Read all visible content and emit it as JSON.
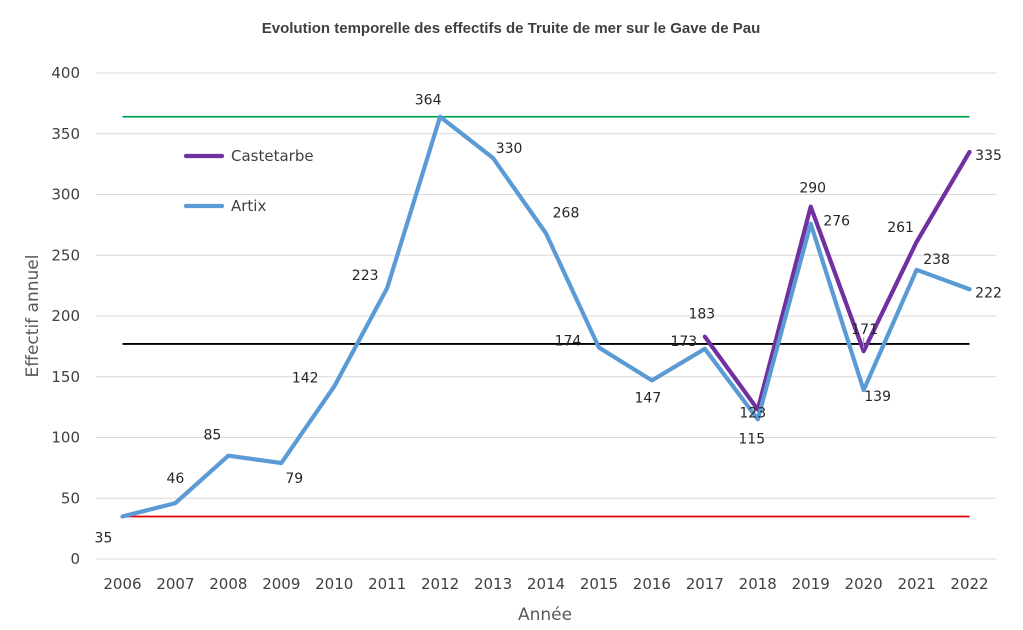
{
  "chart_data": {
    "type": "line",
    "title": "Evolution temporelle des effectifs de Truite de mer sur le Gave de Pau",
    "xlabel": "Année",
    "ylabel": "Effectif annuel",
    "ylim": [
      0,
      400
    ],
    "yticks": [
      0,
      50,
      100,
      150,
      200,
      250,
      300,
      350,
      400
    ],
    "grid": true,
    "legend_position": "top-left",
    "x": [
      "2006",
      "2007",
      "2008",
      "2009",
      "2010",
      "2011",
      "2012",
      "2013",
      "2014",
      "2015",
      "2016",
      "2017",
      "2018",
      "2019",
      "2020",
      "2021",
      "2022"
    ],
    "series": [
      {
        "name": "Castetarbe",
        "color": "#7030a0",
        "values": [
          null,
          null,
          null,
          null,
          null,
          null,
          null,
          null,
          null,
          null,
          null,
          183,
          123,
          290,
          171,
          261,
          335
        ]
      },
      {
        "name": "Artix",
        "color": "#5b9bd5",
        "values": [
          35,
          46,
          85,
          79,
          142,
          223,
          364,
          330,
          268,
          174,
          147,
          173,
          115,
          276,
          139,
          238,
          222
        ]
      }
    ],
    "reference_lines": [
      {
        "value": 364,
        "color": "#00a651"
      },
      {
        "value": 177,
        "color": "#000000"
      },
      {
        "value": 35,
        "color": "#e00000"
      }
    ],
    "data_labels": [
      {
        "text": "35",
        "x": "2006",
        "y": 35
      },
      {
        "text": "46",
        "x": "2007",
        "y": 46
      },
      {
        "text": "85",
        "x": "2008",
        "y": 85
      },
      {
        "text": "79",
        "x": "2009",
        "y": 79
      },
      {
        "text": "142",
        "x": "2010",
        "y": 142
      },
      {
        "text": "223",
        "x": "2011",
        "y": 223
      },
      {
        "text": "364",
        "x": "2012",
        "y": 364
      },
      {
        "text": "330",
        "x": "2013",
        "y": 330
      },
      {
        "text": "268",
        "x": "2014",
        "y": 268
      },
      {
        "text": "174",
        "x": "2015",
        "y": 174
      },
      {
        "text": "147",
        "x": "2016",
        "y": 147
      },
      {
        "text": "173",
        "x": "2017",
        "y": 173
      },
      {
        "text": "183",
        "x": "2017",
        "y": 183
      },
      {
        "text": "123",
        "x": "2018",
        "y": 123
      },
      {
        "text": "115",
        "x": "2018",
        "y": 115
      },
      {
        "text": "290",
        "x": "2019",
        "y": 290
      },
      {
        "text": "276",
        "x": "2019",
        "y": 276
      },
      {
        "text": "171",
        "x": "2020",
        "y": 171
      },
      {
        "text": "139",
        "x": "2020",
        "y": 139
      },
      {
        "text": "261",
        "x": "2021",
        "y": 261
      },
      {
        "text": "238",
        "x": "2021",
        "y": 238
      },
      {
        "text": "335",
        "x": "2022",
        "y": 335
      },
      {
        "text": "222",
        "x": "2022",
        "y": 222
      }
    ]
  }
}
